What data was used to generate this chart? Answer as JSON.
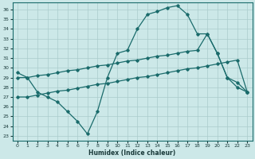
{
  "xlabel": "Humidex (Indice chaleur)",
  "bg_color": "#cce8e8",
  "grid_color": "#aacccc",
  "line_color": "#1a6b6b",
  "xlim": [
    -0.5,
    23.5
  ],
  "ylim": [
    22.5,
    36.7
  ],
  "yticks": [
    23,
    24,
    25,
    26,
    27,
    28,
    29,
    30,
    31,
    32,
    33,
    34,
    35,
    36
  ],
  "xticks": [
    0,
    1,
    2,
    3,
    4,
    5,
    6,
    7,
    8,
    9,
    10,
    11,
    12,
    13,
    14,
    15,
    16,
    17,
    18,
    19,
    20,
    21,
    22,
    23
  ],
  "line1_x": [
    0,
    1,
    2,
    3,
    4,
    5,
    6,
    7,
    8,
    9,
    10,
    11,
    12,
    13,
    14,
    15,
    16,
    17,
    18,
    19,
    20,
    21,
    22,
    23
  ],
  "line1_y": [
    29.5,
    29.0,
    27.5,
    27.0,
    26.5,
    25.5,
    24.5,
    23.2,
    25.5,
    29.0,
    31.5,
    31.8,
    34.0,
    35.5,
    35.8,
    36.2,
    36.4,
    35.5,
    33.5,
    33.5,
    31.5,
    29.0,
    28.0,
    27.5
  ],
  "line2_x": [
    0,
    1,
    2,
    3,
    4,
    5,
    6,
    7,
    8,
    9,
    10,
    11,
    12,
    13,
    14,
    15,
    16,
    17,
    18,
    19,
    20,
    21,
    22,
    23
  ],
  "line2_y": [
    29.0,
    29.0,
    29.2,
    29.3,
    29.5,
    29.7,
    29.8,
    30.0,
    30.2,
    30.3,
    30.5,
    30.7,
    30.8,
    31.0,
    31.2,
    31.3,
    31.5,
    31.7,
    31.8,
    33.5,
    31.5,
    29.0,
    28.5,
    27.5
  ],
  "line3_x": [
    0,
    1,
    2,
    3,
    4,
    5,
    6,
    7,
    8,
    9,
    10,
    11,
    12,
    13,
    14,
    15,
    16,
    17,
    18,
    19,
    20,
    21,
    22,
    23
  ],
  "line3_y": [
    27.0,
    27.0,
    27.2,
    27.4,
    27.6,
    27.7,
    27.9,
    28.1,
    28.3,
    28.4,
    28.6,
    28.8,
    29.0,
    29.1,
    29.3,
    29.5,
    29.7,
    29.9,
    30.0,
    30.2,
    30.4,
    30.6,
    30.8,
    27.5
  ]
}
